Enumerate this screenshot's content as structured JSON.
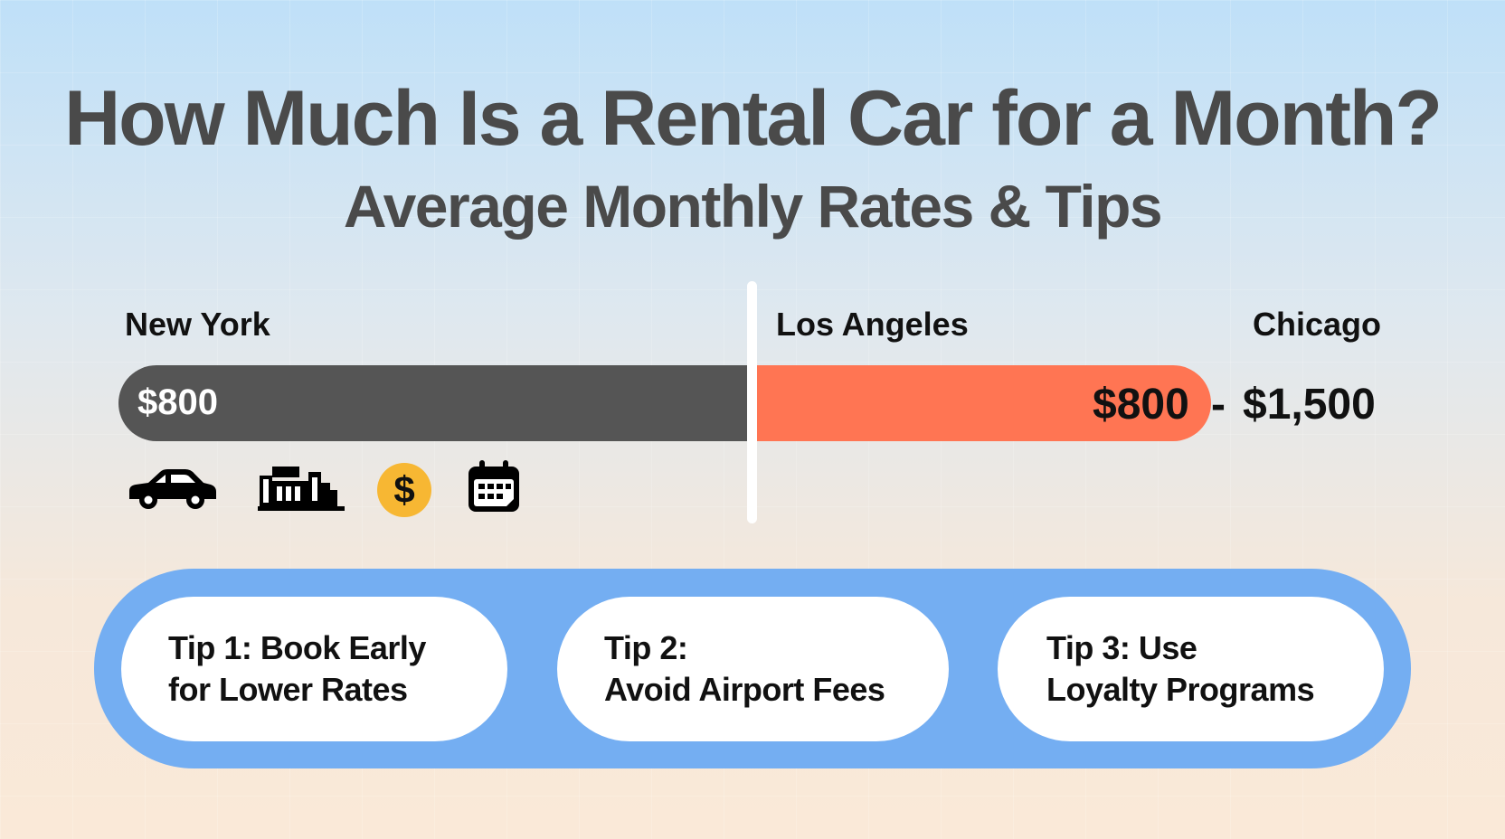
{
  "title": "How Much Is a Rental Car for a Month?",
  "subtitle": "Average Monthly Rates & Tips",
  "cities": {
    "new_york": "New York",
    "los_angeles": "Los Angeles",
    "chicago": "Chicago"
  },
  "rate_bar": {
    "left_value": "$800",
    "right_value": "$800",
    "range_separator": "-",
    "range_max": "$1,500",
    "left_color": "#555555",
    "right_color": "#ff7553"
  },
  "icons": [
    "car-icon",
    "building-icon",
    "dollar-coin-icon",
    "calendar-icon"
  ],
  "tips": {
    "tip1": {
      "line1": "Tip 1: Book Early",
      "line2": "for Lower Rates"
    },
    "tip2": {
      "line1": "Tip 2:",
      "line2": "Avoid Airport Fees"
    },
    "tip3": {
      "line1": "Tip 3: Use",
      "line2": "Loyalty Programs"
    }
  },
  "colors": {
    "tips_panel": "#74aef2",
    "coin": "#f7b733",
    "title_text": "#4a4a4a"
  }
}
